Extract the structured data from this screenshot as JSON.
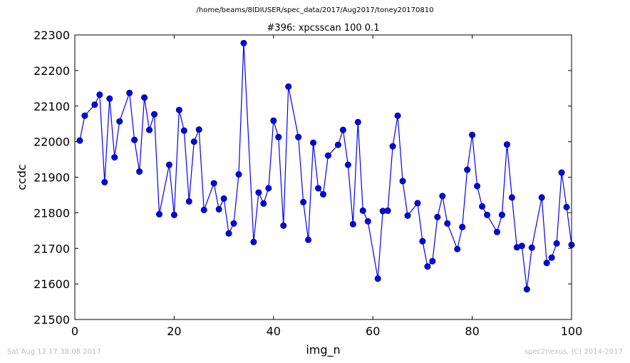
{
  "figure": {
    "suptitle": "/home/beams/8IDIUSER/spec_data/2017/Aug2017/toney20170810",
    "footer_left": "Sat Aug 12 17:38:08 2017",
    "footer_right": "spec2nexus, (C) 2014-2017"
  },
  "chart_data": {
    "type": "line",
    "title": "#396: xpcsscan 100 0.1",
    "xlabel": "img_n",
    "ylabel": "ccdc",
    "xlim": [
      0,
      100
    ],
    "ylim": [
      21500,
      22300
    ],
    "xticks": [
      0,
      20,
      40,
      60,
      80,
      100
    ],
    "yticks": [
      21500,
      21600,
      21700,
      21800,
      21900,
      22000,
      22100,
      22200,
      22300
    ],
    "grid": false,
    "marker": "circle",
    "color": "#0000ff",
    "series": [
      {
        "x": [
          1,
          2,
          4,
          5,
          6,
          7,
          8,
          9,
          11,
          12,
          13,
          14,
          15,
          16,
          17,
          19,
          20,
          21,
          22,
          23,
          24,
          25,
          26,
          28,
          29,
          30,
          31,
          32,
          33,
          34,
          36,
          37,
          38,
          39,
          40,
          41,
          42,
          43,
          45,
          46,
          47,
          48,
          49,
          50,
          51,
          53,
          54,
          55,
          56,
          57,
          58,
          59,
          61,
          62,
          63,
          64,
          65,
          66,
          67,
          69,
          70,
          71,
          72,
          73,
          74,
          75,
          77,
          78,
          79,
          80,
          81,
          82,
          83,
          85,
          86,
          87,
          88,
          89,
          90,
          91,
          92,
          94,
          95,
          96,
          97,
          98,
          99,
          100
        ],
        "y": [
          22003,
          22073,
          22104,
          22132,
          21886,
          22121,
          21956,
          22057,
          22137,
          22005,
          21916,
          22124,
          22033,
          22077,
          21796,
          21935,
          21794,
          22089,
          22031,
          21832,
          22000,
          22034,
          21808,
          21883,
          21810,
          21840,
          21742,
          21770,
          21908,
          22277,
          21718,
          21857,
          21826,
          21869,
          22059,
          22013,
          21764,
          22155,
          22013,
          21830,
          21724,
          21997,
          21869,
          21852,
          21961,
          21991,
          22033,
          21935,
          21768,
          22055,
          21806,
          21776,
          21615,
          21805,
          21806,
          21987,
          22073,
          21889,
          21792,
          21827,
          21720,
          21649,
          21664,
          21788,
          21847,
          21770,
          21698,
          21760,
          21921,
          22019,
          21875,
          21818,
          21794,
          21746,
          21794,
          21992,
          21843,
          21703,
          21707,
          21585,
          21702,
          21843,
          21659,
          21674,
          21714,
          21913,
          21816,
          21710
        ]
      }
    ]
  }
}
